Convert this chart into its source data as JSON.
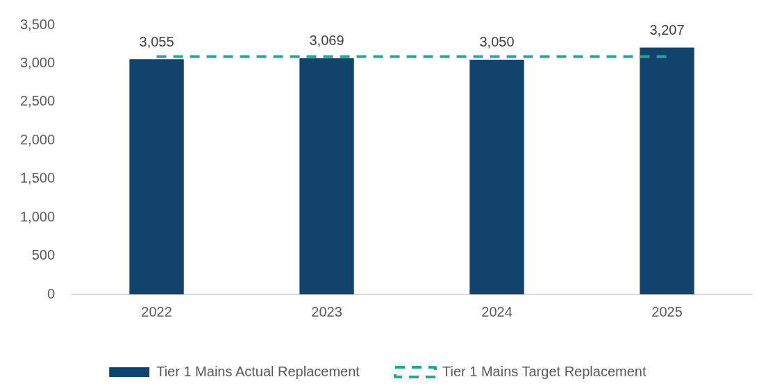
{
  "chart_data": {
    "type": "bar",
    "categories": [
      "2022",
      "2023",
      "2024",
      "2025"
    ],
    "series": [
      {
        "name": "Tier 1 Mains Actual Replacement",
        "color": "#12436d",
        "values": [
          3055,
          3069,
          3050,
          3207
        ],
        "value_labels": [
          "3,055",
          "3,069",
          "3,050",
          "3,207"
        ]
      },
      {
        "name": "Tier 1 Mains Target Replacement",
        "type": "line",
        "color": "#26a69a",
        "values": [
          3090,
          3090,
          3090,
          3090
        ],
        "line_style": "dashed",
        "marker": "none"
      }
    ],
    "ylim": [
      0,
      3500
    ],
    "yticks": [
      {
        "value": 0,
        "label": "0"
      },
      {
        "value": 500,
        "label": "500"
      },
      {
        "value": 1000,
        "label": "1,000"
      },
      {
        "value": 1500,
        "label": "1,500"
      },
      {
        "value": 2000,
        "label": "2,000"
      },
      {
        "value": 2500,
        "label": "2,500"
      },
      {
        "value": 3000,
        "label": "3,000"
      },
      {
        "value": 3500,
        "label": "3,500"
      }
    ],
    "grid": false,
    "legend": "bottom"
  }
}
